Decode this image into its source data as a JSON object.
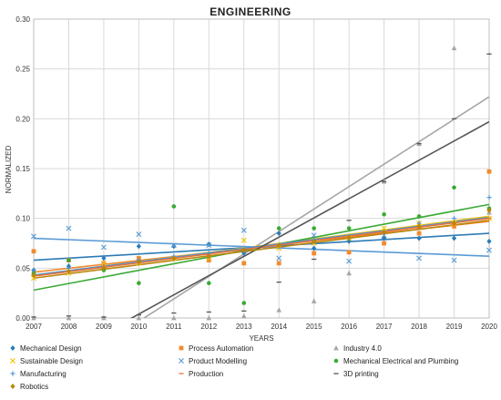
{
  "chart_data": {
    "type": "scatter",
    "title": "ENGINEERING",
    "xlabel": "YEARS",
    "ylabel": "NORMALIZED",
    "xlim": [
      2007,
      2020
    ],
    "ylim": [
      0,
      0.3
    ],
    "x_ticks": [
      2007,
      2008,
      2009,
      2010,
      2011,
      2012,
      2013,
      2014,
      2015,
      2016,
      2017,
      2018,
      2019,
      2020
    ],
    "y_ticks": [
      0.0,
      0.05,
      0.1,
      0.15,
      0.2,
      0.25,
      0.3
    ],
    "y_tick_labels": [
      "0.00",
      "0.05",
      "0.10",
      "0.15",
      "0.20",
      "0.25",
      "0.30"
    ],
    "grid": true,
    "legend_position": "bottom",
    "series": [
      {
        "name": "Mechanical Design",
        "color": "#2c7bb6",
        "marker": "diamond",
        "points": [
          [
            2007,
            0.048
          ],
          [
            2008,
            0.052
          ],
          [
            2009,
            0.06
          ],
          [
            2010,
            0.072
          ],
          [
            2011,
            0.072
          ],
          [
            2012,
            0.074
          ],
          [
            2013,
            0.065
          ],
          [
            2014,
            0.085
          ],
          [
            2015,
            0.07
          ],
          [
            2016,
            0.077
          ],
          [
            2017,
            0.08
          ],
          [
            2018,
            0.08
          ],
          [
            2019,
            0.08
          ],
          [
            2020,
            0.077
          ]
        ],
        "trend": [
          [
            2007,
            0.058
          ],
          [
            2020,
            0.085
          ]
        ]
      },
      {
        "name": "Process Automation",
        "color": "#f28a2e",
        "marker": "square",
        "points": [
          [
            2007,
            0.067
          ],
          [
            2008,
            0.058
          ],
          [
            2009,
            0.055
          ],
          [
            2010,
            0.06
          ],
          [
            2011,
            0.06
          ],
          [
            2012,
            0.058
          ],
          [
            2013,
            0.055
          ],
          [
            2014,
            0.055
          ],
          [
            2015,
            0.065
          ],
          [
            2016,
            0.066
          ],
          [
            2017,
            0.075
          ],
          [
            2018,
            0.085
          ],
          [
            2019,
            0.092
          ],
          [
            2020,
            0.147
          ]
        ],
        "trend": [
          [
            2007,
            0.046
          ],
          [
            2020,
            0.097
          ]
        ]
      },
      {
        "name": "Industry 4.0",
        "color": "#a6a6a6",
        "marker": "triangle",
        "points": [
          [
            2007,
            0.0
          ],
          [
            2008,
            0.0
          ],
          [
            2009,
            0.0
          ],
          [
            2010,
            0.0
          ],
          [
            2011,
            0.0
          ],
          [
            2012,
            0.0
          ],
          [
            2013,
            0.002
          ],
          [
            2014,
            0.008
          ],
          [
            2015,
            0.017
          ],
          [
            2016,
            0.045
          ],
          [
            2017,
            0.137
          ],
          [
            2018,
            0.175
          ],
          [
            2019,
            0.271
          ],
          [
            2020,
            0.106
          ]
        ],
        "trend": [
          [
            2007,
            -0.071
          ],
          [
            2020,
            0.222
          ]
        ]
      },
      {
        "name": "Sustainable Design",
        "color": "#f2c200",
        "marker": "x",
        "points": [
          [
            2007,
            0.04
          ],
          [
            2008,
            0.045
          ],
          [
            2009,
            0.055
          ],
          [
            2010,
            0.055
          ],
          [
            2011,
            0.06
          ],
          [
            2012,
            0.06
          ],
          [
            2013,
            0.078
          ],
          [
            2014,
            0.07
          ],
          [
            2015,
            0.075
          ],
          [
            2016,
            0.08
          ],
          [
            2017,
            0.09
          ],
          [
            2018,
            0.095
          ],
          [
            2019,
            0.095
          ],
          [
            2020,
            0.1
          ]
        ],
        "trend": [
          [
            2007,
            0.043
          ],
          [
            2020,
            0.102
          ]
        ]
      },
      {
        "name": "Product Modelling",
        "color": "#5b9bd5",
        "marker": "x",
        "points": [
          [
            2007,
            0.082
          ],
          [
            2008,
            0.09
          ],
          [
            2009,
            0.071
          ],
          [
            2010,
            0.084
          ],
          [
            2011,
            0.073
          ],
          [
            2012,
            0.073
          ],
          [
            2013,
            0.088
          ],
          [
            2014,
            0.06
          ],
          [
            2015,
            0.083
          ],
          [
            2016,
            0.057
          ],
          [
            2017,
            0.083
          ],
          [
            2018,
            0.06
          ],
          [
            2019,
            0.058
          ],
          [
            2020,
            0.068
          ]
        ],
        "trend": [
          [
            2007,
            0.08
          ],
          [
            2020,
            0.062
          ]
        ]
      },
      {
        "name": "Mechanical Electrical and Plumbing",
        "color": "#3aaa35",
        "marker": "circle",
        "points": [
          [
            2007,
            0.045
          ],
          [
            2008,
            0.058
          ],
          [
            2009,
            0.048
          ],
          [
            2010,
            0.035
          ],
          [
            2011,
            0.112
          ],
          [
            2012,
            0.035
          ],
          [
            2013,
            0.015
          ],
          [
            2014,
            0.09
          ],
          [
            2015,
            0.09
          ],
          [
            2016,
            0.09
          ],
          [
            2017,
            0.104
          ],
          [
            2018,
            0.102
          ],
          [
            2019,
            0.131
          ],
          [
            2020,
            0.11
          ]
        ],
        "trend": [
          [
            2007,
            0.028
          ],
          [
            2020,
            0.114
          ]
        ]
      },
      {
        "name": "Manufacturing",
        "color": "#4f8fd6",
        "marker": "plus",
        "points": [
          [
            2007,
            0.048
          ],
          [
            2008,
            0.05
          ],
          [
            2009,
            0.052
          ],
          [
            2010,
            0.058
          ],
          [
            2011,
            0.062
          ],
          [
            2012,
            0.065
          ],
          [
            2013,
            0.067
          ],
          [
            2014,
            0.072
          ],
          [
            2015,
            0.078
          ],
          [
            2016,
            0.08
          ],
          [
            2017,
            0.085
          ],
          [
            2018,
            0.095
          ],
          [
            2019,
            0.1
          ],
          [
            2020,
            0.121
          ]
        ],
        "trend": [
          [
            2007,
            0.043
          ],
          [
            2020,
            0.101
          ]
        ]
      },
      {
        "name": "Production",
        "color": "#e8743b",
        "marker": "dash",
        "points": [
          [
            2007,
            0.043
          ],
          [
            2008,
            0.047
          ],
          [
            2009,
            0.052
          ],
          [
            2010,
            0.057
          ],
          [
            2011,
            0.06
          ],
          [
            2012,
            0.063
          ],
          [
            2013,
            0.068
          ],
          [
            2014,
            0.072
          ],
          [
            2015,
            0.076
          ],
          [
            2016,
            0.08
          ],
          [
            2017,
            0.085
          ],
          [
            2018,
            0.09
          ],
          [
            2019,
            0.094
          ],
          [
            2020,
            0.1
          ]
        ],
        "trend": [
          [
            2007,
            0.042
          ],
          [
            2020,
            0.1
          ]
        ]
      },
      {
        "name": "3D printing",
        "color": "#555555",
        "marker": "dash",
        "points": [
          [
            2007,
            0.001
          ],
          [
            2008,
            0.002
          ],
          [
            2009,
            0.001
          ],
          [
            2010,
            0.003
          ],
          [
            2011,
            0.005
          ],
          [
            2012,
            0.006
          ],
          [
            2013,
            0.007
          ],
          [
            2014,
            0.036
          ],
          [
            2015,
            0.059
          ],
          [
            2016,
            0.098
          ],
          [
            2017,
            0.137
          ],
          [
            2018,
            0.175
          ],
          [
            2019,
            0.2
          ],
          [
            2020,
            0.265
          ]
        ],
        "trend": [
          [
            2007,
            -0.054
          ],
          [
            2020,
            0.197
          ]
        ]
      },
      {
        "name": "Robotics",
        "color": "#b8860b",
        "marker": "diamond",
        "points": [
          [
            2007,
            0.043
          ],
          [
            2008,
            0.047
          ],
          [
            2009,
            0.05
          ],
          [
            2010,
            0.056
          ],
          [
            2011,
            0.06
          ],
          [
            2012,
            0.062
          ],
          [
            2013,
            0.068
          ],
          [
            2014,
            0.073
          ],
          [
            2015,
            0.077
          ],
          [
            2016,
            0.081
          ],
          [
            2017,
            0.086
          ],
          [
            2018,
            0.092
          ],
          [
            2019,
            0.095
          ],
          [
            2020,
            0.108
          ]
        ],
        "trend": [
          [
            2007,
            0.04
          ],
          [
            2020,
            0.098
          ]
        ]
      }
    ]
  }
}
